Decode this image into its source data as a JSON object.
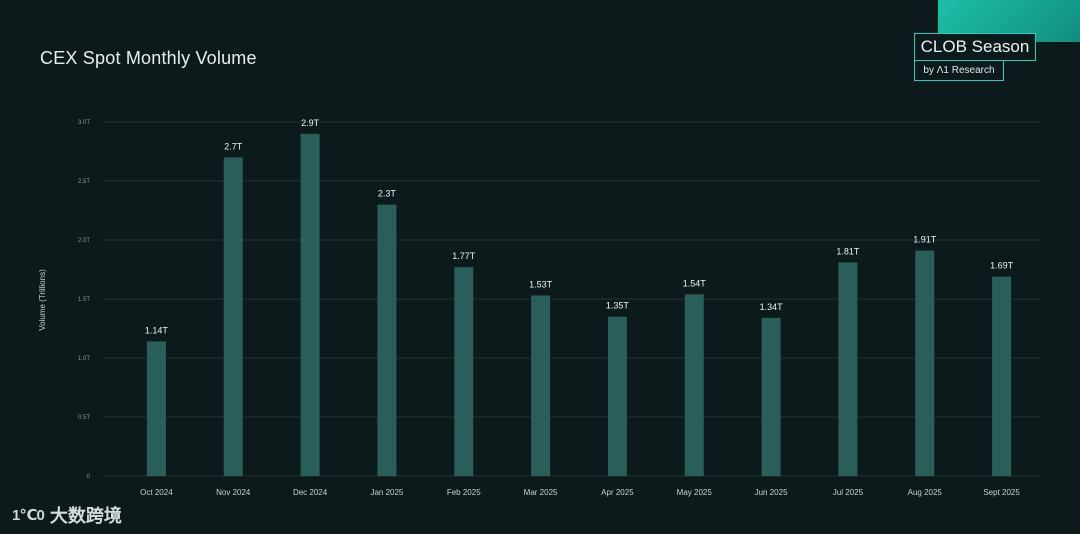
{
  "brand": {
    "title": "CLOB Season",
    "subtitle": "by Λ1 Research"
  },
  "watermark": {
    "logo": "1℃0",
    "text": "大数跨境"
  },
  "colors": {
    "background": "#0d1a1b",
    "bar": "#2a5e5a",
    "accent": "#1fd1b8",
    "grid": "#253232"
  },
  "chart_data": {
    "type": "bar",
    "title": "CEX Spot Monthly Volume",
    "xlabel": "",
    "ylabel": "Volume (Trillions)",
    "ylim": [
      0,
      3.0
    ],
    "yticks": [
      0,
      0.5,
      1.0,
      1.5,
      2.0,
      2.5,
      3.0
    ],
    "ytick_labels": [
      "0",
      "0.5T",
      "1.0T",
      "1.5T",
      "2.0T",
      "2.5T",
      "3.0T"
    ],
    "grid": true,
    "categories": [
      "Oct 2024",
      "Nov 2024",
      "Dec 2024",
      "Jan 2025",
      "Feb 2025",
      "Mar 2025",
      "Apr 2025",
      "May 2025",
      "Jun 2025",
      "Jul 2025",
      "Aug 2025",
      "Sept 2025"
    ],
    "values": [
      1.14,
      2.7,
      2.9,
      2.3,
      1.77,
      1.53,
      1.35,
      1.54,
      1.34,
      1.81,
      1.91,
      1.69
    ],
    "data_labels": [
      "1.14T",
      "2.7T",
      "2.9T",
      "2.3T",
      "1.77T",
      "1.53T",
      "1.35T",
      "1.54T",
      "1.34T",
      "1.81T",
      "1.91T",
      "1.69T"
    ]
  }
}
